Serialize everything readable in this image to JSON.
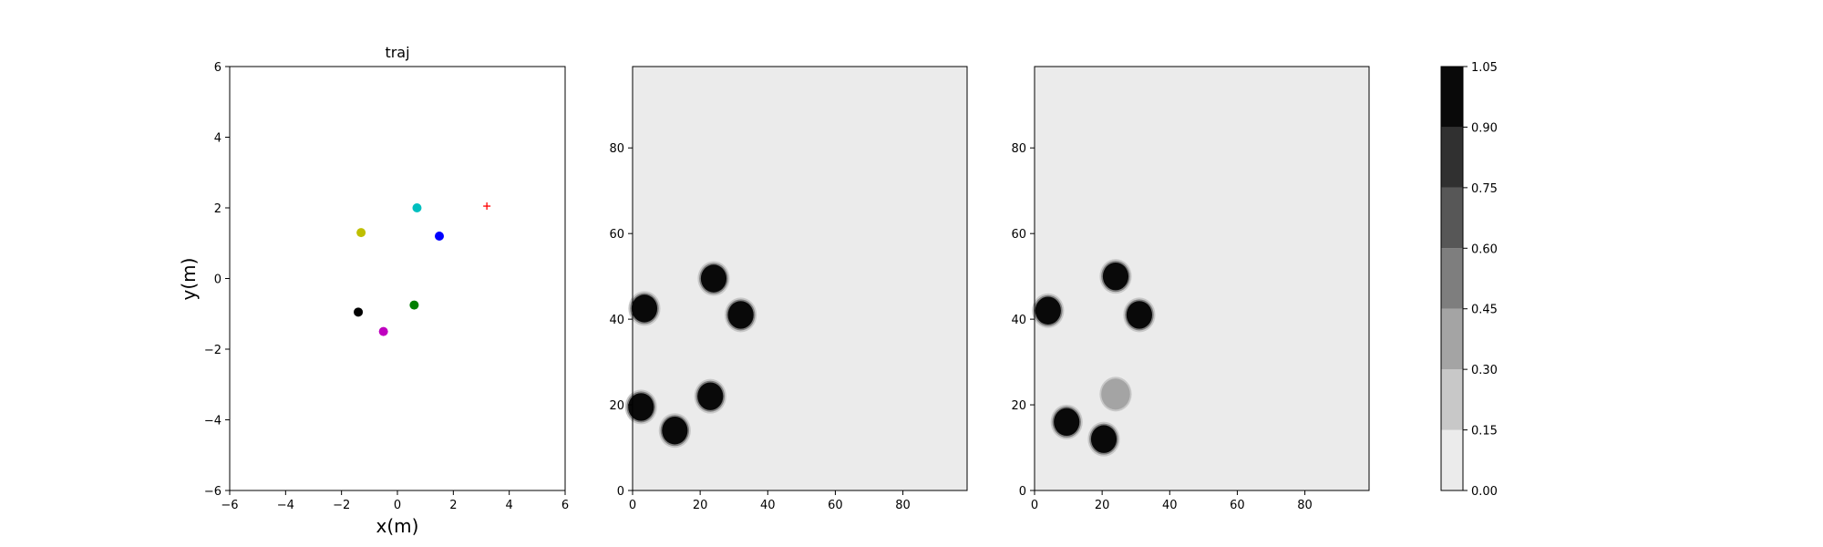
{
  "chart_data": [
    {
      "type": "scatter",
      "title": "traj",
      "xlabel": "x(m)",
      "ylabel": "y(m)",
      "xlim": [
        -6,
        6
      ],
      "ylim": [
        -6,
        6
      ],
      "xticks": [
        -6,
        -4,
        -2,
        0,
        2,
        4,
        6
      ],
      "yticks": [
        -6,
        -4,
        -2,
        0,
        2,
        4,
        6
      ],
      "grid": false,
      "points": [
        {
          "x": 0.7,
          "y": 2.0,
          "color": "#00bfbf",
          "marker": "circle"
        },
        {
          "x": 1.5,
          "y": 1.2,
          "color": "#0000ff",
          "marker": "circle"
        },
        {
          "x": -1.3,
          "y": 1.3,
          "color": "#bfbf00",
          "marker": "circle"
        },
        {
          "x": -1.4,
          "y": -0.95,
          "color": "#000000",
          "marker": "circle"
        },
        {
          "x": 0.6,
          "y": -0.75,
          "color": "#008000",
          "marker": "circle"
        },
        {
          "x": -0.5,
          "y": -1.5,
          "color": "#bf00bf",
          "marker": "circle"
        },
        {
          "x": 3.2,
          "y": 2.05,
          "color": "#ff0000",
          "marker": "plus"
        }
      ]
    },
    {
      "type": "heatmap",
      "xlim": [
        0,
        99
      ],
      "ylim": [
        0,
        99
      ],
      "xticks": [
        0,
        20,
        40,
        60,
        80
      ],
      "yticks": [
        0,
        20,
        40,
        60,
        80
      ],
      "background_value": 0.07,
      "blobs": [
        {
          "x": 3.5,
          "y": 42.5,
          "value": 1.0
        },
        {
          "x": 24,
          "y": 49.5,
          "value": 1.0
        },
        {
          "x": 32,
          "y": 41,
          "value": 1.0
        },
        {
          "x": 2.5,
          "y": 19.5,
          "value": 1.0
        },
        {
          "x": 12.5,
          "y": 14,
          "value": 1.0
        },
        {
          "x": 23,
          "y": 22,
          "value": 1.0
        }
      ]
    },
    {
      "type": "heatmap",
      "xlim": [
        0,
        99
      ],
      "ylim": [
        0,
        99
      ],
      "xticks": [
        0,
        20,
        40,
        60,
        80
      ],
      "yticks": [
        0,
        20,
        40,
        60,
        80
      ],
      "background_value": 0.07,
      "blobs": [
        {
          "x": 4,
          "y": 42,
          "value": 0.95
        },
        {
          "x": 24,
          "y": 50,
          "value": 1.0
        },
        {
          "x": 31,
          "y": 41,
          "value": 1.0
        },
        {
          "x": 9.5,
          "y": 16,
          "value": 0.95
        },
        {
          "x": 20.5,
          "y": 12,
          "value": 1.0
        },
        {
          "x": 24,
          "y": 22.5,
          "value": 0.3
        }
      ]
    },
    {
      "type": "colorbar",
      "levels": [
        "0.00",
        "0.15",
        "0.30",
        "0.45",
        "0.60",
        "0.75",
        "0.90",
        "1.05"
      ],
      "colors": [
        "#ebebeb",
        "#c8c8c8",
        "#a4a4a4",
        "#7e7e7e",
        "#575757",
        "#303030",
        "#090909"
      ]
    }
  ]
}
